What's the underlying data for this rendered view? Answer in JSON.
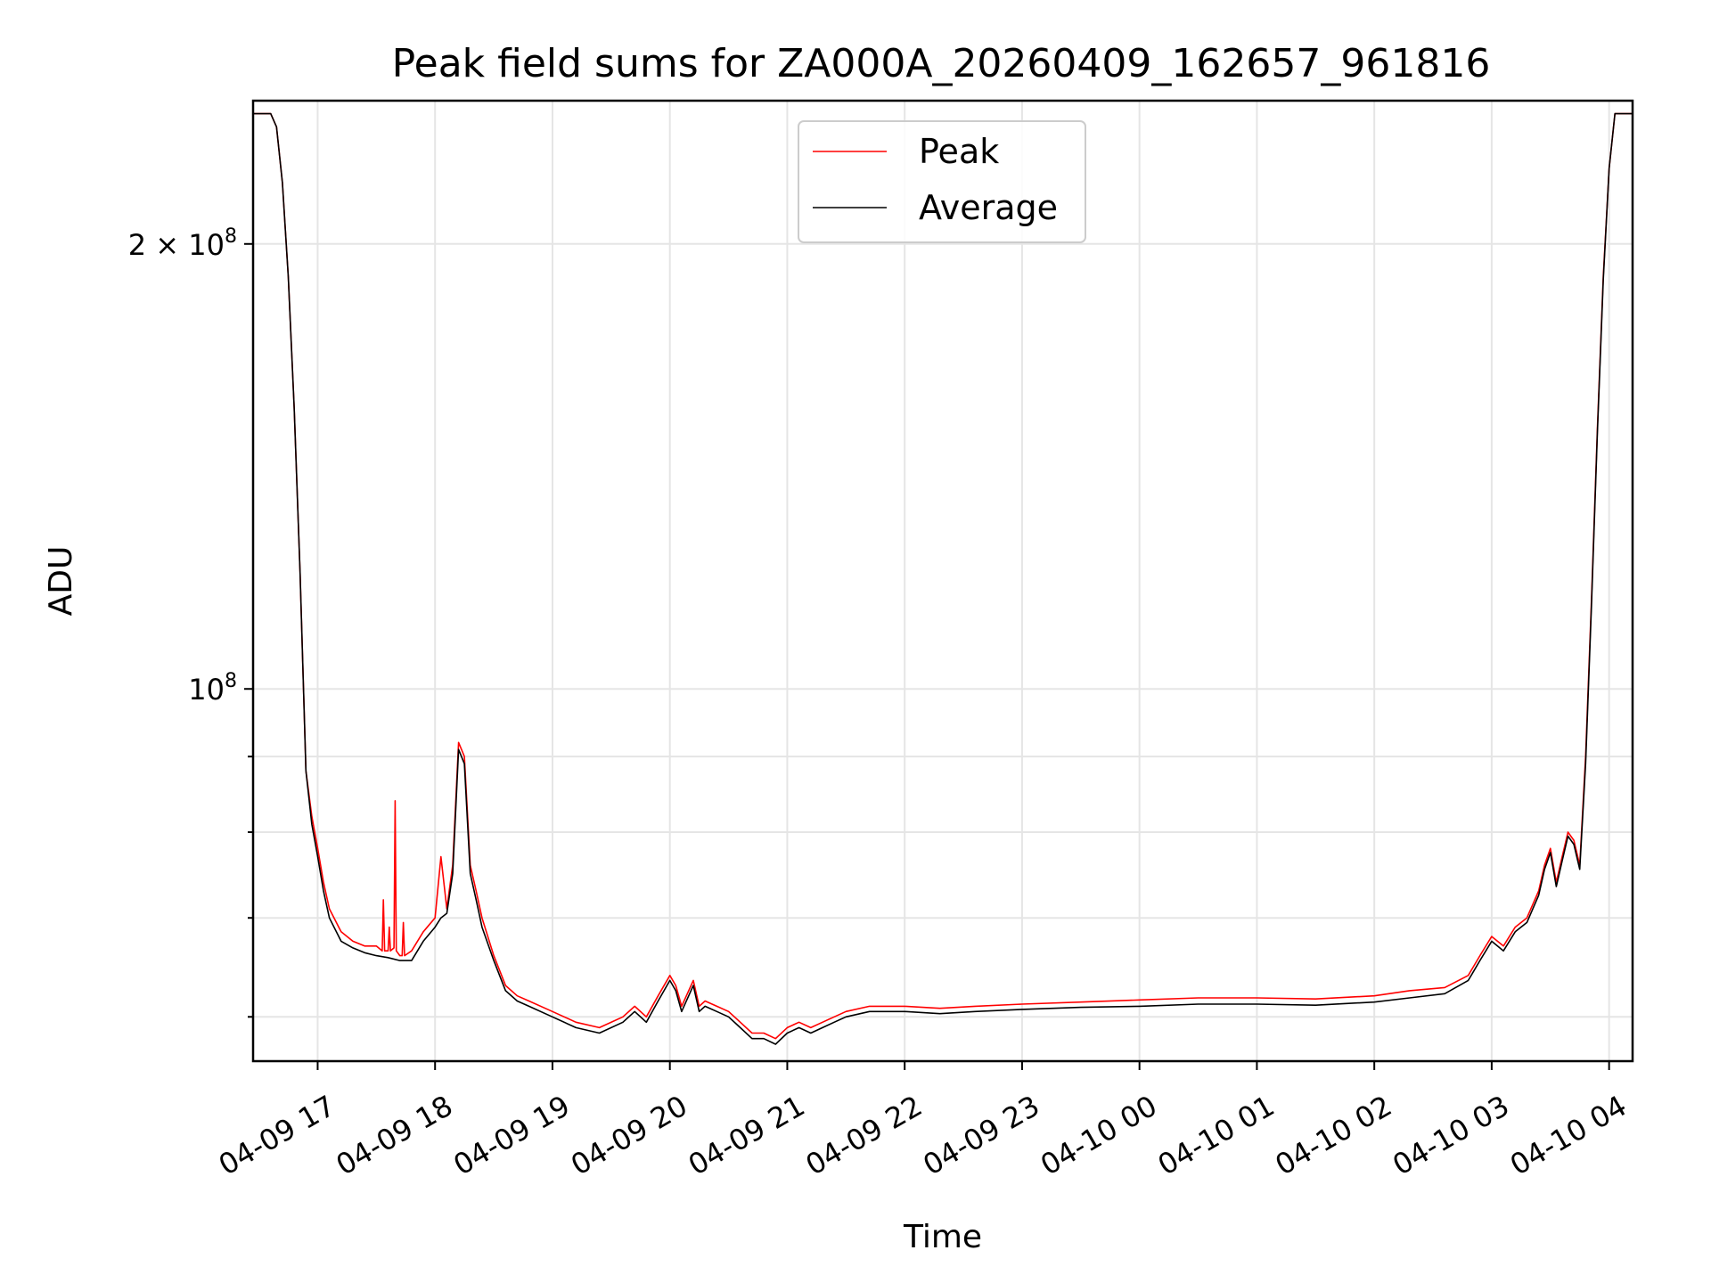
{
  "chart_data": {
    "type": "line",
    "title": "Peak field sums for ZA000A_20260409_162657_961816",
    "xlabel": "Time",
    "ylabel": "ADU",
    "yscale": "log",
    "x_unit": "hours since 2026-04-09 00:00",
    "xlim": [
      16.45,
      28.2
    ],
    "ylim": [
      56000000,
      250000000
    ],
    "x_ticks": [
      {
        "value": 17,
        "label": "04-09 17"
      },
      {
        "value": 18,
        "label": "04-09 18"
      },
      {
        "value": 19,
        "label": "04-09 19"
      },
      {
        "value": 20,
        "label": "04-09 20"
      },
      {
        "value": 21,
        "label": "04-09 21"
      },
      {
        "value": 22,
        "label": "04-09 22"
      },
      {
        "value": 23,
        "label": "04-09 23"
      },
      {
        "value": 24,
        "label": "04-10 00"
      },
      {
        "value": 25,
        "label": "04-10 01"
      },
      {
        "value": 26,
        "label": "04-10 02"
      },
      {
        "value": 27,
        "label": "04-10 03"
      },
      {
        "value": 28,
        "label": "04-10 04"
      }
    ],
    "y_major_ticks": [
      {
        "value": 100000000,
        "base": "10",
        "exp": "8",
        "prefix": ""
      },
      {
        "value": 200000000,
        "base": "10",
        "exp": "8",
        "prefix": "2 × "
      }
    ],
    "y_minor_ticks": [
      60000000,
      70000000,
      80000000,
      90000000
    ],
    "grid": true,
    "legend_position": "top-center",
    "series": [
      {
        "name": "Peak",
        "color": "#ff0000",
        "x": [
          16.45,
          16.6,
          16.65,
          16.7,
          16.75,
          16.8,
          16.85,
          16.9,
          16.95,
          17.0,
          17.05,
          17.1,
          17.2,
          17.3,
          17.4,
          17.5,
          17.55,
          17.56,
          17.57,
          17.6,
          17.61,
          17.62,
          17.65,
          17.66,
          17.67,
          17.7,
          17.72,
          17.73,
          17.74,
          17.8,
          17.9,
          18.0,
          18.05,
          18.1,
          18.15,
          18.2,
          18.25,
          18.3,
          18.35,
          18.4,
          18.5,
          18.6,
          18.7,
          18.8,
          19.0,
          19.2,
          19.4,
          19.6,
          19.7,
          19.8,
          19.9,
          20.0,
          20.05,
          20.1,
          20.2,
          20.25,
          20.3,
          20.4,
          20.5,
          20.6,
          20.7,
          20.8,
          20.9,
          21.0,
          21.1,
          21.2,
          21.3,
          21.4,
          21.5,
          21.7,
          22.0,
          22.3,
          22.6,
          23.0,
          23.5,
          24.0,
          24.5,
          25.0,
          25.5,
          26.0,
          26.3,
          26.6,
          26.8,
          26.9,
          27.0,
          27.1,
          27.2,
          27.3,
          27.4,
          27.45,
          27.5,
          27.55,
          27.6,
          27.65,
          27.7,
          27.75,
          27.8,
          27.85,
          27.9,
          27.95,
          28.0,
          28.05,
          28.1,
          28.2
        ],
        "values": [
          245000000,
          245000000,
          240000000,
          220000000,
          190000000,
          155000000,
          120000000,
          88000000,
          82000000,
          78000000,
          74000000,
          71000000,
          68500000,
          67500000,
          67000000,
          67000000,
          66500000,
          72000000,
          66500000,
          66500000,
          69000000,
          66500000,
          66800000,
          84000000,
          66500000,
          66000000,
          66000000,
          69500000,
          66000000,
          66500000,
          68500000,
          70000000,
          77000000,
          71000000,
          76000000,
          92000000,
          90000000,
          76000000,
          73000000,
          70000000,
          66000000,
          63000000,
          62000000,
          61500000,
          60500000,
          59500000,
          59000000,
          60000000,
          61000000,
          60000000,
          62000000,
          64000000,
          63000000,
          61000000,
          63500000,
          61000000,
          61500000,
          61000000,
          60500000,
          59500000,
          58500000,
          58500000,
          58000000,
          59000000,
          59500000,
          59000000,
          59500000,
          60000000,
          60500000,
          61000000,
          61000000,
          60800000,
          61000000,
          61200000,
          61400000,
          61600000,
          61800000,
          61800000,
          61700000,
          62000000,
          62500000,
          62800000,
          64000000,
          66000000,
          68000000,
          67000000,
          69000000,
          70000000,
          73000000,
          76000000,
          78000000,
          74000000,
          77000000,
          80000000,
          79000000,
          76000000,
          90000000,
          115000000,
          150000000,
          190000000,
          225000000,
          245000000,
          245000000,
          245000000
        ]
      },
      {
        "name": "Average",
        "color": "#000000",
        "x": [
          16.45,
          16.6,
          16.65,
          16.7,
          16.75,
          16.8,
          16.85,
          16.9,
          16.95,
          17.0,
          17.05,
          17.1,
          17.2,
          17.3,
          17.4,
          17.5,
          17.6,
          17.7,
          17.8,
          17.9,
          18.0,
          18.05,
          18.1,
          18.15,
          18.2,
          18.25,
          18.3,
          18.35,
          18.4,
          18.5,
          18.6,
          18.7,
          18.8,
          19.0,
          19.2,
          19.4,
          19.6,
          19.7,
          19.8,
          19.9,
          20.0,
          20.05,
          20.1,
          20.2,
          20.25,
          20.3,
          20.4,
          20.5,
          20.6,
          20.7,
          20.8,
          20.9,
          21.0,
          21.1,
          21.2,
          21.3,
          21.4,
          21.5,
          21.7,
          22.0,
          22.3,
          22.6,
          23.0,
          23.5,
          24.0,
          24.5,
          25.0,
          25.5,
          26.0,
          26.3,
          26.6,
          26.8,
          26.9,
          27.0,
          27.1,
          27.2,
          27.3,
          27.4,
          27.45,
          27.5,
          27.55,
          27.6,
          27.65,
          27.7,
          27.75,
          27.8,
          27.85,
          27.9,
          27.95,
          28.0,
          28.05,
          28.1,
          28.2
        ],
        "values": [
          245000000,
          245000000,
          240000000,
          220000000,
          190000000,
          155000000,
          120000000,
          88000000,
          81000000,
          77000000,
          73000000,
          70000000,
          67500000,
          66800000,
          66300000,
          66000000,
          65800000,
          65500000,
          65500000,
          67500000,
          69000000,
          70000000,
          70500000,
          75000000,
          91000000,
          89000000,
          75000000,
          72000000,
          69000000,
          65500000,
          62500000,
          61500000,
          61000000,
          60000000,
          59000000,
          58500000,
          59500000,
          60500000,
          59500000,
          61500000,
          63500000,
          62500000,
          60500000,
          63000000,
          60500000,
          61000000,
          60500000,
          60000000,
          59000000,
          58000000,
          58000000,
          57500000,
          58500000,
          59000000,
          58500000,
          59000000,
          59500000,
          60000000,
          60500000,
          60500000,
          60300000,
          60500000,
          60700000,
          60900000,
          61000000,
          61200000,
          61200000,
          61100000,
          61400000,
          61800000,
          62200000,
          63500000,
          65500000,
          67500000,
          66500000,
          68500000,
          69500000,
          72500000,
          75500000,
          77500000,
          73500000,
          76500000,
          79500000,
          78500000,
          75500000,
          89000000,
          114000000,
          149000000,
          189000000,
          225000000,
          245000000,
          245000000,
          245000000
        ]
      }
    ]
  }
}
